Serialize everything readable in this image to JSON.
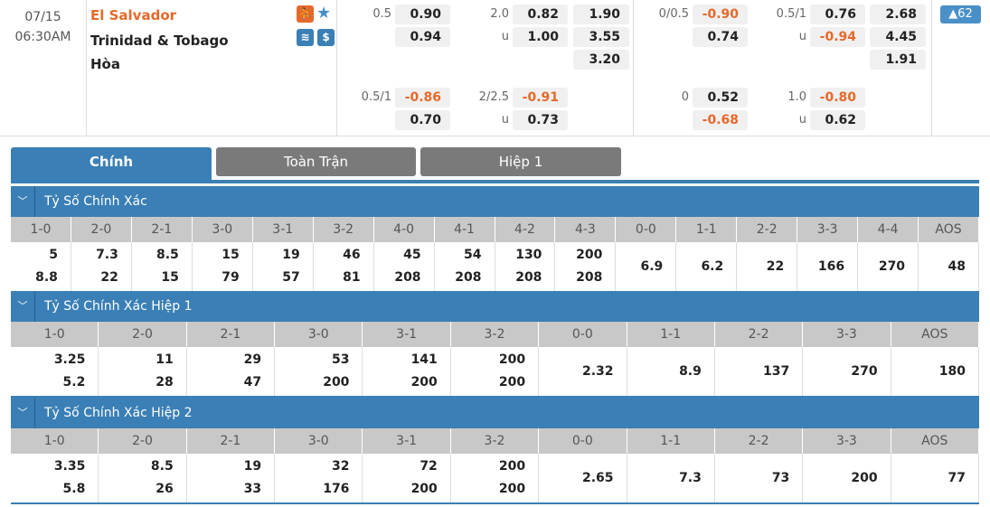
{
  "match": {
    "date": "07/15",
    "time": "06:30AM",
    "home": "El Salvador",
    "away": "Trinidad & Tobago",
    "draw": "Hòa",
    "badge": "▲62"
  },
  "icons": [
    "player-icon",
    "star-icon",
    "stats-icon",
    "dollar-icon"
  ],
  "colors": {
    "accent": "#3a7fb5",
    "negative": "#e5692a",
    "home": "#e5692a"
  },
  "odds": {
    "ft_hdp": {
      "line": "0.5",
      "home": "0.90",
      "away": "0.94"
    },
    "ft_ou": {
      "line": "2.0",
      "over": "0.82",
      "u": "u",
      "under": "1.00"
    },
    "ft_1x2": {
      "home": "1.90",
      "away": "3.55",
      "draw": "3.20"
    },
    "ft_hdp2": {
      "line": "0.5/1",
      "home": "-0.86",
      "away": "0.70"
    },
    "ft_ou2": {
      "line": "2/2.5",
      "over": "-0.91",
      "u": "u",
      "under": "0.73"
    },
    "h1_hdp": {
      "line": "0/0.5",
      "home": "-0.90",
      "away": "0.74"
    },
    "h1_ou": {
      "line": "0.5/1",
      "over": "0.76",
      "u": "u",
      "under": "-0.94"
    },
    "h1_1x2": {
      "home": "2.68",
      "away": "4.45",
      "draw": "1.91"
    },
    "h1_hdp2": {
      "line": "0",
      "home": "0.52",
      "away": "-0.68"
    },
    "h1_ou2": {
      "line": "1.0",
      "over": "-0.80",
      "u": "u",
      "under": "0.62"
    }
  },
  "tabs": [
    "Chính",
    "Toàn Trận",
    "Hiệp 1"
  ],
  "sections": [
    {
      "title": "Tỷ Số Chính Xác",
      "headers": [
        "1-0",
        "2-0",
        "2-1",
        "3-0",
        "3-1",
        "3-2",
        "4-0",
        "4-1",
        "4-2",
        "4-3",
        "0-0",
        "1-1",
        "2-2",
        "3-3",
        "4-4",
        "AOS"
      ],
      "cells": [
        [
          "5",
          "8.8"
        ],
        [
          "7.3",
          "22"
        ],
        [
          "8.5",
          "15"
        ],
        [
          "15",
          "79"
        ],
        [
          "19",
          "57"
        ],
        [
          "46",
          "81"
        ],
        [
          "45",
          "208"
        ],
        [
          "54",
          "208"
        ],
        [
          "130",
          "208"
        ],
        [
          "200",
          "208"
        ],
        [
          "6.9"
        ],
        [
          "6.2"
        ],
        [
          "22"
        ],
        [
          "166"
        ],
        [
          "270"
        ],
        [
          "48"
        ]
      ]
    },
    {
      "title": "Tỷ Số Chính Xác Hiệp 1",
      "headers": [
        "1-0",
        "2-0",
        "2-1",
        "3-0",
        "3-1",
        "3-2",
        "0-0",
        "1-1",
        "2-2",
        "3-3",
        "AOS"
      ],
      "cells": [
        [
          "3.25",
          "5.2"
        ],
        [
          "11",
          "28"
        ],
        [
          "29",
          "47"
        ],
        [
          "53",
          "200"
        ],
        [
          "141",
          "200"
        ],
        [
          "200",
          "200"
        ],
        [
          "2.32"
        ],
        [
          "8.9"
        ],
        [
          "137"
        ],
        [
          "270"
        ],
        [
          "180"
        ]
      ]
    },
    {
      "title": "Tỷ Số Chính Xác Hiệp 2",
      "headers": [
        "1-0",
        "2-0",
        "2-1",
        "3-0",
        "3-1",
        "3-2",
        "0-0",
        "1-1",
        "2-2",
        "3-3",
        "AOS"
      ],
      "cells": [
        [
          "3.35",
          "5.8"
        ],
        [
          "8.5",
          "26"
        ],
        [
          "19",
          "33"
        ],
        [
          "32",
          "176"
        ],
        [
          "72",
          "200"
        ],
        [
          "200",
          "200"
        ],
        [
          "2.65"
        ],
        [
          "7.3"
        ],
        [
          "73"
        ],
        [
          "200"
        ],
        [
          "77"
        ]
      ]
    }
  ]
}
